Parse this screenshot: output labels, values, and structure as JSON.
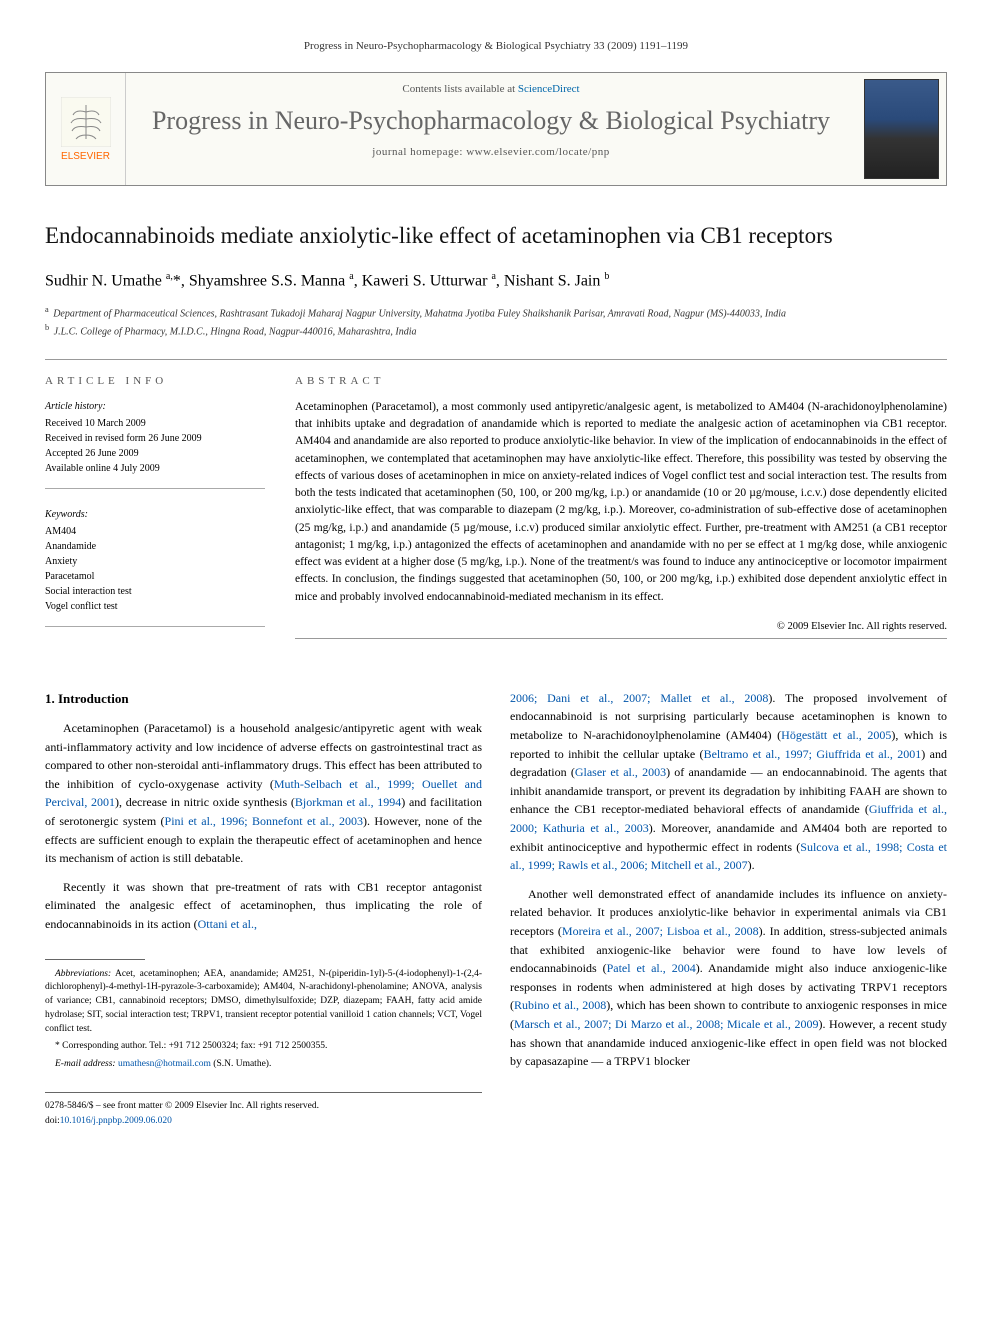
{
  "running_header": "Progress in Neuro-Psychopharmacology & Biological Psychiatry 33 (2009) 1191–1199",
  "banner": {
    "elsevier": "ELSEVIER",
    "contents_prefix": "Contents lists available at ",
    "contents_link": "ScienceDirect",
    "journal_title": "Progress in Neuro-Psychopharmacology & Biological Psychiatry",
    "homepage_label": "journal homepage: ",
    "homepage_url": "www.elsevier.com/locate/pnp"
  },
  "article": {
    "title": "Endocannabinoids mediate anxiolytic-like effect of acetaminophen via CB1 receptors",
    "authors_html": "Sudhir N. Umathe <sup>a,</sup>*, Shyamshree S.S. Manna <sup>a</sup>, Kaweri S. Utturwar <sup>a</sup>, Nishant S. Jain <sup>b</sup>",
    "affiliations": [
      {
        "sup": "a",
        "text": "Department of Pharmaceutical Sciences, Rashtrasant Tukadoji Maharaj Nagpur University, Mahatma Jyotiba Fuley Shaikshanik Parisar, Amravati Road, Nagpur (MS)-440033, India"
      },
      {
        "sup": "b",
        "text": "J.L.C. College of Pharmacy, M.I.D.C., Hingna Road, Nagpur-440016, Maharashtra, India"
      }
    ]
  },
  "info": {
    "section_label": "ARTICLE INFO",
    "history_title": "Article history:",
    "history": [
      "Received 10 March 2009",
      "Received in revised form 26 June 2009",
      "Accepted 26 June 2009",
      "Available online 4 July 2009"
    ],
    "keywords_title": "Keywords:",
    "keywords": [
      "AM404",
      "Anandamide",
      "Anxiety",
      "Paracetamol",
      "Social interaction test",
      "Vogel conflict test"
    ]
  },
  "abstract": {
    "section_label": "ABSTRACT",
    "text": "Acetaminophen (Paracetamol), a most commonly used antipyretic/analgesic agent, is metabolized to AM404 (N-arachidonoylphenolamine) that inhibits uptake and degradation of anandamide which is reported to mediate the analgesic action of acetaminophen via CB1 receptor. AM404 and anandamide are also reported to produce anxiolytic-like behavior. In view of the implication of endocannabinoids in the effect of acetaminophen, we contemplated that acetaminophen may have anxiolytic-like effect. Therefore, this possibility was tested by observing the effects of various doses of acetaminophen in mice on anxiety-related indices of Vogel conflict test and social interaction test. The results from both the tests indicated that acetaminophen (50, 100, or 200 mg/kg, i.p.) or anandamide (10 or 20 µg/mouse, i.c.v.) dose dependently elicited anxiolytic-like effect, that was comparable to diazepam (2 mg/kg, i.p.). Moreover, co-administration of sub-effective dose of acetaminophen (25 mg/kg, i.p.) and anandamide (5 µg/mouse, i.c.v) produced similar anxiolytic effect. Further, pre-treatment with AM251 (a CB1 receptor antagonist; 1 mg/kg, i.p.) antagonized the effects of acetaminophen and anandamide with no per se effect at 1 mg/kg dose, while anxiogenic effect was evident at a higher dose (5 mg/kg, i.p.). None of the treatment/s was found to induce any antinociceptive or locomotor impairment effects. In conclusion, the findings suggested that acetaminophen (50, 100, or 200 mg/kg, i.p.) exhibited dose dependent anxiolytic effect in mice and probably involved endocannabinoid-mediated mechanism in its effect.",
    "copyright": "© 2009 Elsevier Inc. All rights reserved."
  },
  "body": {
    "intro_heading": "1. Introduction",
    "left_paragraphs": [
      "Acetaminophen (Paracetamol) is a household analgesic/antipyretic agent with weak anti-inflammatory activity and low incidence of adverse effects on gastrointestinal tract as compared to other non-steroidal anti-inflammatory drugs. This effect has been attributed to the inhibition of cyclo-oxygenase activity (<a>Muth-Selbach et al., 1999; Ouellet and Percival, 2001</a>), decrease in nitric oxide synthesis (<a>Bjorkman et al., 1994</a>) and facilitation of serotonergic system (<a>Pini et al., 1996; Bonnefont et al., 2003</a>). However, none of the effects are sufficient enough to explain the therapeutic effect of acetaminophen and hence its mechanism of action is still debatable.",
      "Recently it was shown that pre-treatment of rats with CB1 receptor antagonist eliminated the analgesic effect of acetaminophen, thus implicating the role of endocannabinoids in its action (<a>Ottani et al.,</a>"
    ],
    "right_paragraphs": [
      "<a>2006; Dani et al., 2007; Mallet et al., 2008</a>). The proposed involvement of endocannabinoid is not surprising particularly because acetaminophen is known to metabolize to N-arachidonoylphenolamine (AM404) (<a>Högestätt et al., 2005</a>), which is reported to inhibit the cellular uptake (<a>Beltramo et al., 1997; Giuffrida et al., 2001</a>) and degradation (<a>Glaser et al., 2003</a>) of anandamide — an endocannabinoid. The agents that inhibit anandamide transport, or prevent its degradation by inhibiting FAAH are shown to enhance the CB1 receptor-mediated behavioral effects of anandamide (<a>Giuffrida et al., 2000; Kathuria et al., 2003</a>). Moreover, anandamide and AM404 both are reported to exhibit antinociceptive and hypothermic effect in rodents (<a>Sulcova et al., 1998; Costa et al., 1999; Rawls et al., 2006; Mitchell et al., 2007</a>).",
      "Another well demonstrated effect of anandamide includes its influence on anxiety-related behavior. It produces anxiolytic-like behavior in experimental animals via CB1 receptors (<a>Moreira et al., 2007; Lisboa et al., 2008</a>). In addition, stress-subjected animals that exhibited anxiogenic-like behavior were found to have low levels of endocannabinoids (<a>Patel et al., 2004</a>). Anandamide might also induce anxiogenic-like responses in rodents when administered at high doses by activating TRPV1 receptors (<a>Rubino et al., 2008</a>), which has been shown to contribute to anxiogenic responses in mice (<a>Marsch et al., 2007; Di Marzo et al., 2008; Micale et al., 2009</a>). However, a recent study has shown that anandamide induced anxiogenic-like effect in open field was not blocked by capasazapine — a TRPV1 blocker"
    ]
  },
  "footnotes": {
    "abbrev_label": "Abbreviations:",
    "abbrev_text": " Acet, acetaminophen; AEA, anandamide; AM251, N-(piperidin-1yl)-5-(4-iodophenyl)-1-(2,4-dichlorophenyl)-4-methyl-1H-pyrazole-3-carboxamide); AM404, N-arachidonyl-phenolamine; ANOVA, analysis of variance; CB1, cannabinoid receptors; DMSO, dimethylsulfoxide; DZP, diazepam; FAAH, fatty acid amide hydrolase; SIT, social interaction test; TRPV1, transient receptor potential vanilloid 1 cation channels; VCT, Vogel conflict test.",
    "corr_label": "* Corresponding author.",
    "corr_tel": " Tel.: +91 712 2500324; fax: +91 712 2500355.",
    "email_label": "E-mail address: ",
    "email": "umathesn@hotmail.com",
    "email_suffix": " (S.N. Umathe)."
  },
  "bottom": {
    "left1": "0278-5846/$ – see front matter © 2009 Elsevier Inc. All rights reserved.",
    "left2": "doi:",
    "doi": "10.1016/j.pnpbp.2009.06.020"
  },
  "colors": {
    "link": "#0055aa",
    "journal_title": "#666666",
    "elsevier_orange": "#ff6600"
  }
}
